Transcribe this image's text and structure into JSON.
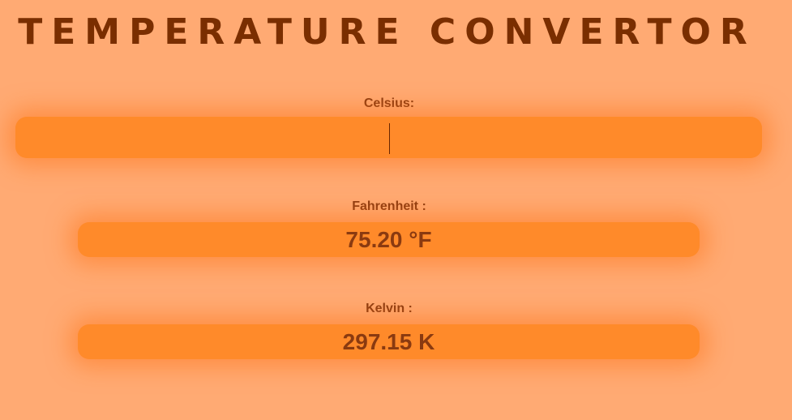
{
  "header": {
    "title": "TEMPERATURE CONVERTOR"
  },
  "celsius": {
    "label": "Celsius:",
    "value": "",
    "placeholder": ""
  },
  "fahrenheit": {
    "label": "Fahrenheit :",
    "value": "75.20 °F"
  },
  "kelvin": {
    "label": "Kelvin :",
    "value": "297.15 K"
  },
  "colors": {
    "background": "#FFAA73",
    "field": "#FF8A2A",
    "text": "#7A2E00"
  }
}
